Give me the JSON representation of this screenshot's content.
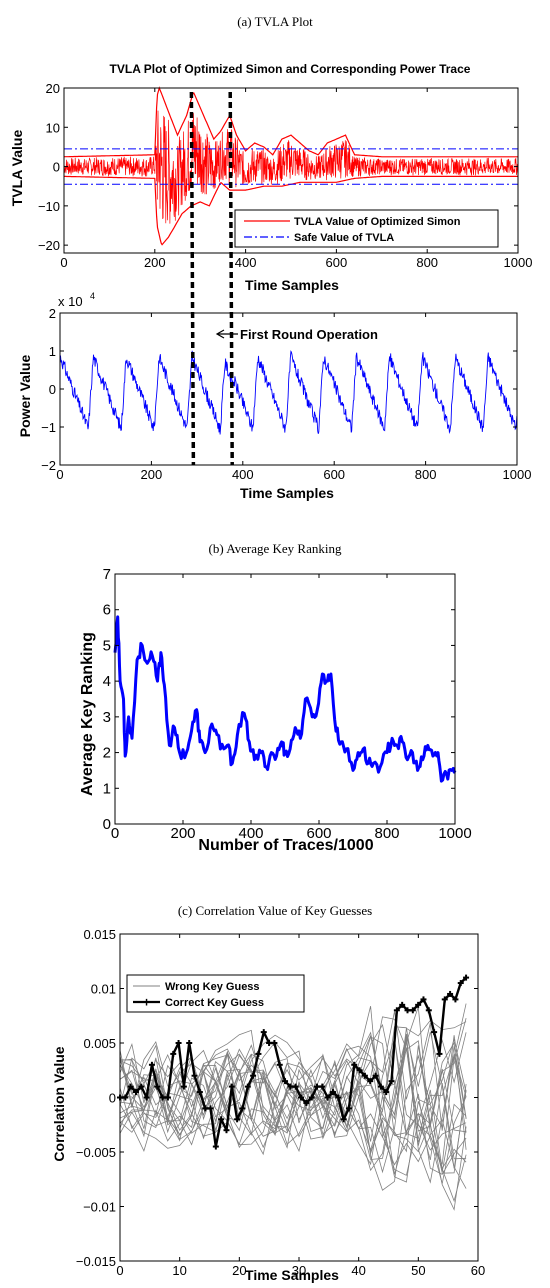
{
  "chart_data": [
    {
      "type": "line",
      "caption": "(a) TVLA Plot",
      "title": "TVLA Plot of Optimized Simon and Corresponding Power Trace",
      "xlabel": "Time Samples",
      "ylabel": "TVLA Value",
      "xlim": [
        0,
        1000
      ],
      "ylim": [
        -22,
        20
      ],
      "xticks": [
        0,
        200,
        400,
        600,
        800,
        1000
      ],
      "yticks": [
        20,
        10,
        0,
        -10,
        -20
      ],
      "series": [
        {
          "name": "TVLA Value of Optimized Simon",
          "color": "#ff0000",
          "upper_envelope": [
            [
              0,
              2.5
            ],
            [
              200,
              3
            ],
            [
              205,
              18
            ],
            [
              210,
              20
            ],
            [
              230,
              14
            ],
            [
              250,
              8
            ],
            [
              270,
              13
            ],
            [
              285,
              19
            ],
            [
              300,
              15
            ],
            [
              330,
              7
            ],
            [
              345,
              9
            ],
            [
              365,
              13
            ],
            [
              380,
              8
            ],
            [
              400,
              4
            ],
            [
              420,
              6
            ],
            [
              440,
              5
            ],
            [
              460,
              3
            ],
            [
              480,
              7
            ],
            [
              500,
              8
            ],
            [
              520,
              6
            ],
            [
              540,
              4
            ],
            [
              560,
              3
            ],
            [
              580,
              6
            ],
            [
              600,
              7
            ],
            [
              620,
              8
            ],
            [
              640,
              3
            ],
            [
              700,
              2.5
            ],
            [
              1000,
              2.5
            ]
          ],
          "lower_envelope": [
            [
              0,
              -2.5
            ],
            [
              200,
              -3
            ],
            [
              205,
              -15
            ],
            [
              215,
              -20
            ],
            [
              230,
              -18
            ],
            [
              260,
              -12
            ],
            [
              280,
              -10
            ],
            [
              300,
              -9
            ],
            [
              320,
              -10
            ],
            [
              345,
              -4
            ],
            [
              365,
              -6
            ],
            [
              400,
              -6
            ],
            [
              440,
              -5
            ],
            [
              480,
              -5
            ],
            [
              520,
              -4
            ],
            [
              560,
              -4
            ],
            [
              600,
              -4
            ],
            [
              640,
              -3
            ],
            [
              700,
              -2.5
            ],
            [
              1000,
              -2.5
            ]
          ]
        },
        {
          "name": "Safe Value of TVLA",
          "color": "#0000ff",
          "values": [
            4.5,
            -4.5
          ]
        }
      ],
      "annotations": {
        "dashed_markers_x": [
          285,
          365
        ]
      }
    },
    {
      "type": "line",
      "xlabel": "Time Samples",
      "ylabel": "Power Value",
      "exponent_label": "x 10",
      "exponent_power": "4",
      "annotation": "First Round Operation",
      "xlim": [
        0,
        1000
      ],
      "ylim": [
        -2,
        2
      ],
      "xticks": [
        0,
        200,
        400,
        600,
        800,
        1000
      ],
      "yticks": [
        2,
        1,
        0,
        -1,
        -2
      ],
      "period": 72,
      "peak": 0.85,
      "trough": -1.05,
      "color": "#0000ff"
    },
    {
      "type": "line",
      "caption": "(b) Average Key Ranking",
      "xlabel": "Number of Traces/1000",
      "ylabel": "Average Key Ranking",
      "xlim": [
        0,
        1000
      ],
      "ylim": [
        0,
        7
      ],
      "xticks": [
        0,
        200,
        400,
        600,
        800,
        1000
      ],
      "yticks": [
        7,
        6,
        5,
        4,
        3,
        2,
        1,
        0
      ],
      "color": "#0000ff",
      "points": [
        [
          0,
          4.8
        ],
        [
          8,
          5.8
        ],
        [
          15,
          4.0
        ],
        [
          25,
          3.5
        ],
        [
          30,
          1.9
        ],
        [
          40,
          3.0
        ],
        [
          50,
          2.4
        ],
        [
          65,
          4.6
        ],
        [
          80,
          5.0
        ],
        [
          95,
          4.5
        ],
        [
          110,
          4.7
        ],
        [
          125,
          4.0
        ],
        [
          135,
          4.8
        ],
        [
          145,
          3.9
        ],
        [
          160,
          2.2
        ],
        [
          175,
          2.7
        ],
        [
          190,
          2.0
        ],
        [
          210,
          2.0
        ],
        [
          225,
          2.6
        ],
        [
          240,
          3.2
        ],
        [
          250,
          2.3
        ],
        [
          265,
          2.0
        ],
        [
          285,
          2.8
        ],
        [
          300,
          2.5
        ],
        [
          310,
          2.1
        ],
        [
          330,
          2.2
        ],
        [
          345,
          1.7
        ],
        [
          360,
          2.5
        ],
        [
          380,
          3.1
        ],
        [
          395,
          2.3
        ],
        [
          410,
          1.8
        ],
        [
          430,
          2.0
        ],
        [
          445,
          1.6
        ],
        [
          460,
          2.0
        ],
        [
          475,
          1.9
        ],
        [
          490,
          2.3
        ],
        [
          500,
          2.0
        ],
        [
          515,
          2.1
        ],
        [
          530,
          2.7
        ],
        [
          545,
          2.4
        ],
        [
          560,
          3.5
        ],
        [
          580,
          3.0
        ],
        [
          595,
          3.2
        ],
        [
          610,
          4.2
        ],
        [
          625,
          4.0
        ],
        [
          635,
          4.2
        ],
        [
          650,
          2.6
        ],
        [
          665,
          2.3
        ],
        [
          680,
          2.1
        ],
        [
          700,
          1.5
        ],
        [
          715,
          2.0
        ],
        [
          730,
          2.1
        ],
        [
          745,
          1.7
        ],
        [
          760,
          1.7
        ],
        [
          780,
          1.6
        ],
        [
          800,
          2.0
        ],
        [
          815,
          2.4
        ],
        [
          830,
          2.2
        ],
        [
          845,
          2.3
        ],
        [
          860,
          1.8
        ],
        [
          875,
          2.0
        ],
        [
          890,
          1.5
        ],
        [
          905,
          1.8
        ],
        [
          920,
          2.2
        ],
        [
          935,
          1.9
        ],
        [
          950,
          2.0
        ],
        [
          960,
          1.2
        ],
        [
          975,
          1.4
        ],
        [
          990,
          1.5
        ],
        [
          1000,
          1.5
        ]
      ]
    },
    {
      "type": "line",
      "caption": "(c) Correlation Value of Key Guesses",
      "xlabel": "Time Samples",
      "ylabel": "Correlation Value",
      "xlim": [
        0,
        60
      ],
      "ylim": [
        -0.015,
        0.015
      ],
      "xticks": [
        0,
        10,
        20,
        30,
        40,
        50,
        60
      ],
      "yticks": [
        "0.015",
        "0.01",
        "0.005",
        "0",
        "−0.005",
        "−0.01",
        "−0.015"
      ],
      "series": [
        {
          "name": "Wrong Key Guess",
          "color": "#808080",
          "count": 22
        },
        {
          "name": "Correct Key Guess",
          "color": "#000000",
          "values": [
            0,
            0,
            0.001,
            0.0005,
            0.001,
            0,
            0.003,
            0.001,
            0,
            0,
            0.004,
            0.005,
            0.001,
            0.005,
            0.002,
            0.0005,
            -0.001,
            -0.001,
            -0.0045,
            -0.002,
            -0.003,
            0.001,
            -0.002,
            -0.001,
            0.001,
            0.002,
            0.004,
            0.006,
            0.005,
            0.005,
            0.003,
            0.0015,
            0.001,
            0.001,
            0,
            -0.0005,
            0,
            0.001,
            0.001,
            0,
            0.0005,
            0,
            -0.002,
            -0.001,
            0.003,
            0.0025,
            0.002,
            0.0015,
            0.002,
            0.001,
            0.0005,
            0.0015,
            0.008,
            0.0085,
            0.008,
            0.008,
            0.0085,
            0.009,
            0.008,
            0.006,
            0.004,
            0.009,
            0.0095,
            0.009,
            0.0105,
            0.011
          ]
        }
      ]
    }
  ]
}
